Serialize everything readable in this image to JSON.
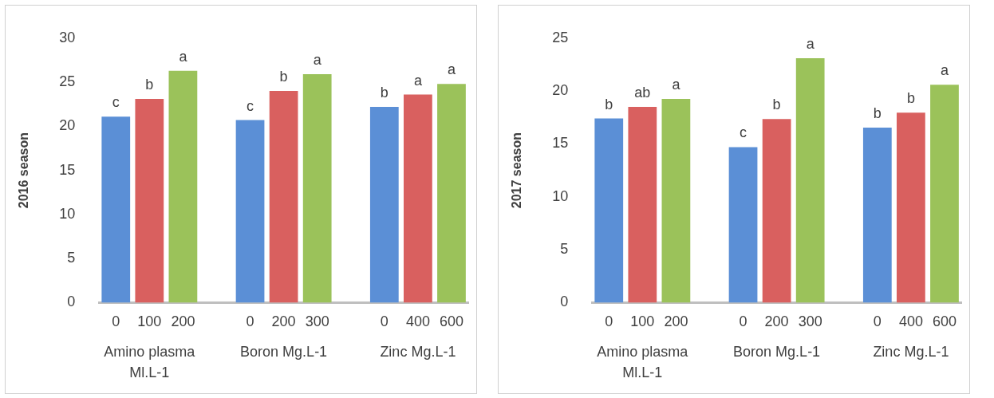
{
  "chart_data": [
    {
      "type": "bar",
      "ylabel": "2016 season",
      "categories": [
        "0",
        "100",
        "200",
        null,
        "0",
        "200",
        "300",
        null,
        "0",
        "400",
        "600"
      ],
      "values": [
        21.1,
        23.1,
        26.3,
        null,
        20.7,
        24.0,
        25.9,
        null,
        22.2,
        23.6,
        24.8
      ],
      "colors": [
        "#5b8fd6",
        "#d9605f",
        "#9bc25a",
        null,
        "#5b8fd6",
        "#d9605f",
        "#9bc25a",
        null,
        "#5b8fd6",
        "#d9605f",
        "#9bc25a"
      ],
      "value_labels": [
        "c",
        "b",
        "a",
        null,
        "c",
        "b",
        "a",
        null,
        "b",
        "a",
        "a"
      ],
      "annotations": [
        "Amino plasma Ml.L-1",
        "Boron Mg.L-1",
        "Zinc Mg.L-1"
      ],
      "ylim": [
        0,
        30
      ],
      "yticks": [
        0,
        5,
        10,
        15,
        20,
        25,
        30
      ],
      "grid": false,
      "legend": false
    },
    {
      "type": "bar",
      "ylabel": "2017 season",
      "categories": [
        "0",
        "100",
        "200",
        null,
        "0",
        "200",
        "300",
        null,
        "0",
        "400",
        "600"
      ],
      "values": [
        17.4,
        18.5,
        19.25,
        null,
        14.7,
        17.35,
        23.1,
        null,
        16.55,
        17.95,
        20.6
      ],
      "colors": [
        "#5b8fd6",
        "#d9605f",
        "#9bc25a",
        null,
        "#5b8fd6",
        "#d9605f",
        "#9bc25a",
        null,
        "#5b8fd6",
        "#d9605f",
        "#9bc25a"
      ],
      "value_labels": [
        "b",
        "ab",
        "a",
        null,
        "c",
        "b",
        "a",
        null,
        "b",
        "b",
        "a"
      ],
      "annotations": [
        "Amino plasma Ml.L-1",
        "Boron Mg.L-1",
        "Zinc Mg.L-1"
      ],
      "ylim": [
        0,
        25
      ],
      "yticks": [
        0,
        5,
        10,
        15,
        20,
        25
      ],
      "grid": false,
      "legend": false
    }
  ]
}
